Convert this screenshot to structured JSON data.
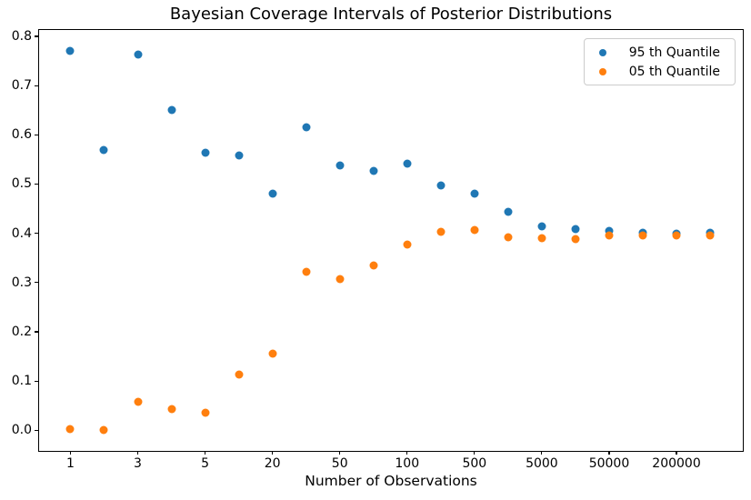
{
  "chart_data": {
    "type": "scatter",
    "title": "Bayesian Coverage Intervals of Posterior Distributions",
    "xlabel": "Number of Observations",
    "ylabel": "",
    "grid": false,
    "legend_position": "upper right",
    "x_index_lim": [
      -0.93,
      19.97
    ],
    "ylim": [
      -0.042,
      0.813
    ],
    "x_tick_indices": [
      0,
      2,
      4,
      6,
      8,
      10,
      12,
      14,
      16,
      18
    ],
    "x_tick_labels": [
      "1",
      "3",
      "5",
      "20",
      "50",
      "100",
      "500",
      "5000",
      "50000",
      "200000"
    ],
    "y_ticks": [
      0.0,
      0.1,
      0.2,
      0.3,
      0.4,
      0.5,
      0.6,
      0.7,
      0.8
    ],
    "y_tick_labels": [
      "0.0",
      "0.1",
      "0.2",
      "0.3",
      "0.4",
      "0.5",
      "0.6",
      "0.7",
      "0.8"
    ],
    "series": [
      {
        "name": "95 th Quantile",
        "color": "#1f77b4",
        "values": [
          0.771,
          0.57,
          0.764,
          0.65,
          0.564,
          0.558,
          0.481,
          0.615,
          0.537,
          0.527,
          0.541,
          0.497,
          0.48,
          0.443,
          0.414,
          0.408,
          0.405,
          0.402,
          0.4,
          0.401
        ]
      },
      {
        "name": "05 th Quantile",
        "color": "#ff7f0e",
        "values": [
          0.002,
          0.0,
          0.057,
          0.043,
          0.035,
          0.114,
          0.156,
          0.322,
          0.307,
          0.334,
          0.377,
          0.403,
          0.406,
          0.392,
          0.391,
          0.389,
          0.395,
          0.395,
          0.395,
          0.396
        ]
      }
    ]
  }
}
